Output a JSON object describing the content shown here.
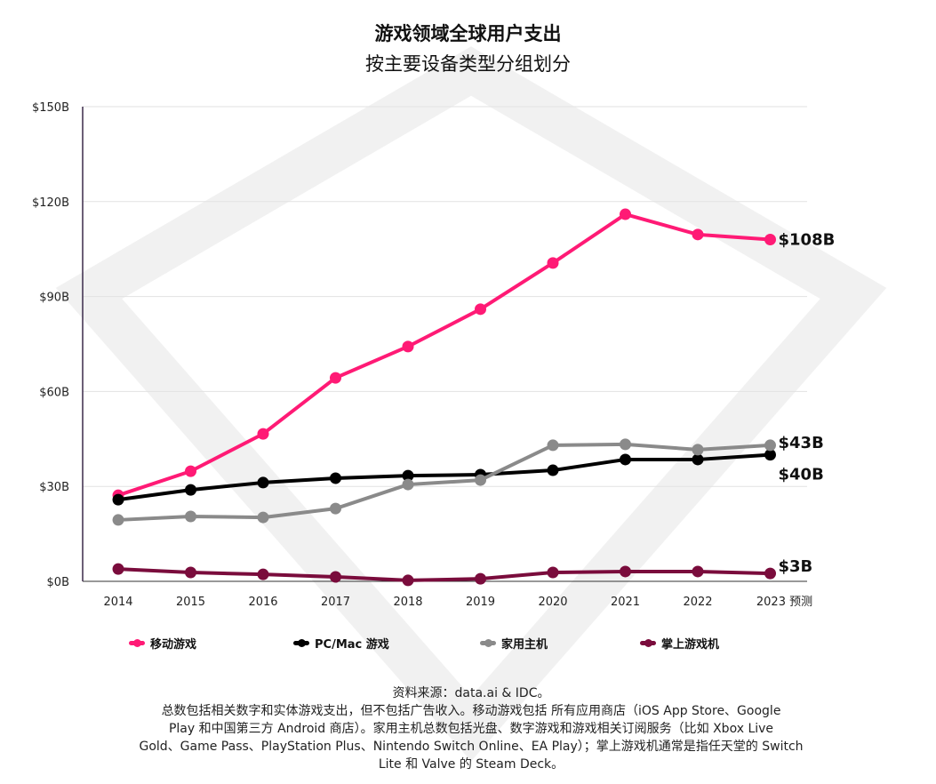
{
  "chart_data": {
    "type": "line",
    "title": "游戏领域全球用户支出",
    "subtitle": "按主要设备类型分组划分",
    "categories": [
      "2014",
      "2015",
      "2016",
      "2017",
      "2018",
      "2019",
      "2020",
      "2021",
      "2022",
      "2023 预测"
    ],
    "y_ticks": [
      "$0B",
      "$30B",
      "$60B",
      "$90B",
      "$120B",
      "$150B"
    ],
    "ylim": [
      0,
      150
    ],
    "y_unit": "$B",
    "grid": true,
    "legend_position": "bottom",
    "series": [
      {
        "name": "移动游戏",
        "color": "#ff1a75",
        "values": [
          27.2,
          34.8,
          46.6,
          64.3,
          74.2,
          86.0,
          100.6,
          116.0,
          109.6,
          108.0
        ],
        "end_label": "$108B"
      },
      {
        "name": "PC/Mac 游戏",
        "color": "#000000",
        "values": [
          25.8,
          28.9,
          31.2,
          32.6,
          33.4,
          33.7,
          35.1,
          38.5,
          38.5,
          40.0
        ],
        "end_label": "$40B"
      },
      {
        "name": "家用主机",
        "color": "#8a8a8a",
        "values": [
          19.4,
          20.5,
          20.2,
          23.0,
          30.6,
          32.0,
          43.0,
          43.3,
          41.6,
          43.0
        ],
        "end_label": "$43B"
      },
      {
        "name": "掌上游戏机",
        "color": "#7a0c3c",
        "values": [
          3.9,
          2.8,
          2.2,
          1.4,
          0.3,
          0.8,
          2.8,
          3.1,
          3.1,
          2.5
        ],
        "end_label": "$3B"
      }
    ]
  },
  "notes": {
    "source": "资料来源：data.ai & IDC。",
    "lines": [
      "总数包括相关数字和实体游戏支出，但不包括广告收入。移动游戏包括 所有应用商店（iOS App Store、Google",
      "Play 和中国第三方 Android 商店）。家用主机总数包括光盘、数字游戏和游戏相关订阅服务（比如 Xbox Live",
      "Gold、Game Pass、PlayStation Plus、Nintendo Switch Online、EA Play）；掌上游戏机通常是指任天堂的 Switch",
      "Lite 和 Valve 的 Steam Deck。"
    ]
  }
}
